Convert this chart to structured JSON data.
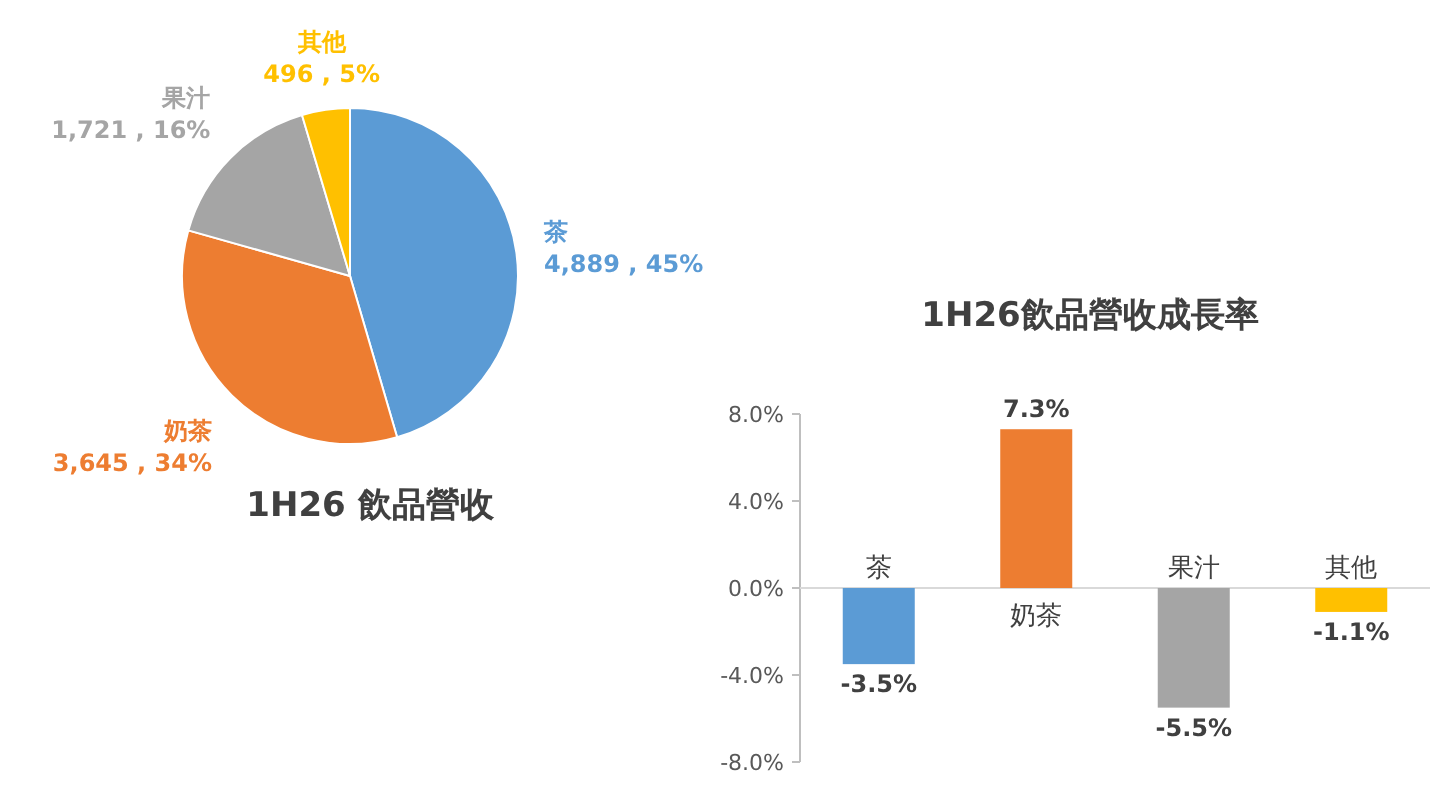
{
  "chart_data": [
    {
      "type": "pie",
      "title": "1H26 飲品營收",
      "categories": [
        "茶",
        "奶茶",
        "果汁",
        "其他"
      ],
      "values": [
        4889,
        3645,
        1721,
        496
      ],
      "value_labels": [
        "4,889 , 45%",
        "3,645 , 34%",
        "1,721 , 16%",
        "496 , 5%"
      ],
      "colors": [
        "#5b9bd5",
        "#ed7d31",
        "#a5a5a5",
        "#ffc000"
      ]
    },
    {
      "type": "bar",
      "title": "1H26飲品營收成長率",
      "categories": [
        "茶",
        "奶茶",
        "果汁",
        "其他"
      ],
      "values": [
        -3.5,
        7.3,
        -5.5,
        -1.1
      ],
      "value_labels": [
        "-3.5%",
        "7.3%",
        "-5.5%",
        "-1.1%"
      ],
      "colors": [
        "#5b9bd5",
        "#ed7d31",
        "#a5a5a5",
        "#ffc000"
      ],
      "ylim": [
        -8,
        8
      ],
      "yticks": [
        {
          "value": -8,
          "label": "-8.0%"
        },
        {
          "value": -4,
          "label": "-4.0%"
        },
        {
          "value": 0,
          "label": "0.0%"
        },
        {
          "value": 4,
          "label": "4.0%"
        },
        {
          "value": 8,
          "label": "8.0%"
        }
      ]
    }
  ]
}
